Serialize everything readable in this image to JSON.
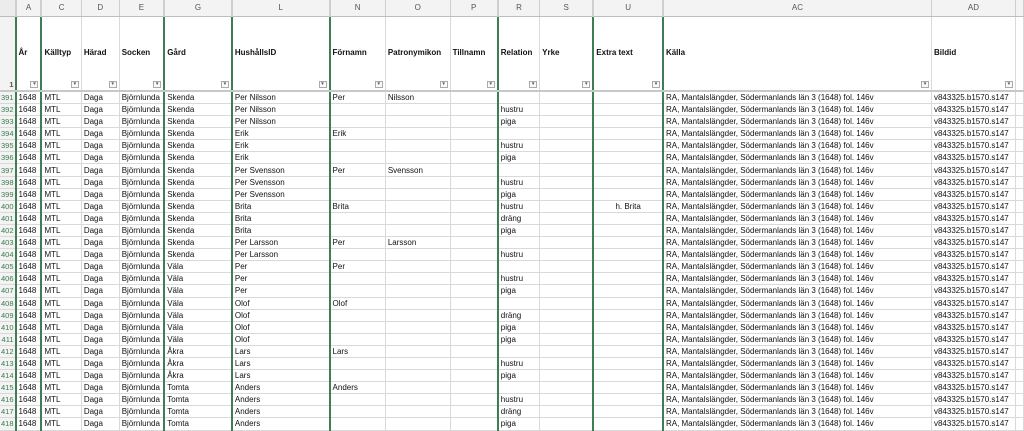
{
  "columns": [
    {
      "letter": "A",
      "field": "År"
    },
    {
      "letter": "C",
      "field": "Källtyp"
    },
    {
      "letter": "D",
      "field": "Härad"
    },
    {
      "letter": "E",
      "field": "Socken"
    },
    {
      "letter": "G",
      "field": "Gård"
    },
    {
      "letter": "L",
      "field": "HushållsID"
    },
    {
      "letter": "N",
      "field": "Förnamn"
    },
    {
      "letter": "O",
      "field": "Patronymikon"
    },
    {
      "letter": "P",
      "field": "Tillnamn"
    },
    {
      "letter": "R",
      "field": "Relation"
    },
    {
      "letter": "S",
      "field": "Yrke"
    },
    {
      "letter": "U",
      "field": "Extra text"
    },
    {
      "letter": "AC",
      "field": "Källa"
    },
    {
      "letter": "AD",
      "field": "Bildid"
    },
    {
      "letter": "",
      "field": ""
    }
  ],
  "header_row_number": "1",
  "filter_icon": "dropdown-filter-icon",
  "hidden_column_marker_color": "#3f7d55",
  "rows": [
    [
      "391",
      "1648",
      "MTL",
      "Daga",
      "Björnlunda",
      "Skenda",
      "Per Nilsson",
      "Per",
      "Nilsson",
      "",
      "",
      "",
      "",
      "RA, Mantalslängder, Södermanlands län 3 (1648) fol. 146v",
      "v843325.b1570.s147"
    ],
    [
      "392",
      "1648",
      "MTL",
      "Daga",
      "Björnlunda",
      "Skenda",
      "Per Nilsson",
      "",
      "",
      "",
      "hustru",
      "",
      "",
      "RA, Mantalslängder, Södermanlands län 3 (1648) fol. 146v",
      "v843325.b1570.s147"
    ],
    [
      "393",
      "1648",
      "MTL",
      "Daga",
      "Björnlunda",
      "Skenda",
      "Per Nilsson",
      "",
      "",
      "",
      "piga",
      "",
      "",
      "RA, Mantalslängder, Södermanlands län 3 (1648) fol. 146v",
      "v843325.b1570.s147"
    ],
    [
      "394",
      "1648",
      "MTL",
      "Daga",
      "Björnlunda",
      "Skenda",
      "Erik",
      "Erik",
      "",
      "",
      "",
      "",
      "",
      "RA, Mantalslängder, Södermanlands län 3 (1648) fol. 146v",
      "v843325.b1570.s147"
    ],
    [
      "395",
      "1648",
      "MTL",
      "Daga",
      "Björnlunda",
      "Skenda",
      "Erik",
      "",
      "",
      "",
      "hustru",
      "",
      "",
      "RA, Mantalslängder, Södermanlands län 3 (1648) fol. 146v",
      "v843325.b1570.s147"
    ],
    [
      "396",
      "1648",
      "MTL",
      "Daga",
      "Björnlunda",
      "Skenda",
      "Erik",
      "",
      "",
      "",
      "piga",
      "",
      "",
      "RA, Mantalslängder, Södermanlands län 3 (1648) fol. 146v",
      "v843325.b1570.s147"
    ],
    [
      "397",
      "1648",
      "MTL",
      "Daga",
      "Björnlunda",
      "Skenda",
      "Per Svensson",
      "Per",
      "Svensson",
      "",
      "",
      "",
      "",
      "RA, Mantalslängder, Södermanlands län 3 (1648) fol. 146v",
      "v843325.b1570.s147"
    ],
    [
      "398",
      "1648",
      "MTL",
      "Daga",
      "Björnlunda",
      "Skenda",
      "Per Svensson",
      "",
      "",
      "",
      "hustru",
      "",
      "",
      "RA, Mantalslängder, Södermanlands län 3 (1648) fol. 146v",
      "v843325.b1570.s147"
    ],
    [
      "399",
      "1648",
      "MTL",
      "Daga",
      "Björnlunda",
      "Skenda",
      "Per Svensson",
      "",
      "",
      "",
      "piga",
      "",
      "",
      "RA, Mantalslängder, Södermanlands län 3 (1648) fol. 146v",
      "v843325.b1570.s147"
    ],
    [
      "400",
      "1648",
      "MTL",
      "Daga",
      "Björnlunda",
      "Skenda",
      "Brita",
      "Brita",
      "",
      "",
      "hustru",
      "",
      "h. Brita",
      "RA, Mantalslängder, Södermanlands län 3 (1648) fol. 146v",
      "v843325.b1570.s147"
    ],
    [
      "401",
      "1648",
      "MTL",
      "Daga",
      "Björnlunda",
      "Skenda",
      "Brita",
      "",
      "",
      "",
      "dräng",
      "",
      "",
      "RA, Mantalslängder, Södermanlands län 3 (1648) fol. 146v",
      "v843325.b1570.s147"
    ],
    [
      "402",
      "1648",
      "MTL",
      "Daga",
      "Björnlunda",
      "Skenda",
      "Brita",
      "",
      "",
      "",
      "piga",
      "",
      "",
      "RA, Mantalslängder, Södermanlands län 3 (1648) fol. 146v",
      "v843325.b1570.s147"
    ],
    [
      "403",
      "1648",
      "MTL",
      "Daga",
      "Björnlunda",
      "Skenda",
      "Per Larsson",
      "Per",
      "Larsson",
      "",
      "",
      "",
      "",
      "RA, Mantalslängder, Södermanlands län 3 (1648) fol. 146v",
      "v843325.b1570.s147"
    ],
    [
      "404",
      "1648",
      "MTL",
      "Daga",
      "Björnlunda",
      "Skenda",
      "Per Larsson",
      "",
      "",
      "",
      "hustru",
      "",
      "",
      "RA, Mantalslängder, Södermanlands län 3 (1648) fol. 146v",
      "v843325.b1570.s147"
    ],
    [
      "405",
      "1648",
      "MTL",
      "Daga",
      "Björnlunda",
      "Väla",
      "Per",
      "Per",
      "",
      "",
      "",
      "",
      "",
      "RA, Mantalslängder, Södermanlands län 3 (1648) fol. 146v",
      "v843325.b1570.s147"
    ],
    [
      "406",
      "1648",
      "MTL",
      "Daga",
      "Björnlunda",
      "Väla",
      "Per",
      "",
      "",
      "",
      "hustru",
      "",
      "",
      "RA, Mantalslängder, Södermanlands län 3 (1648) fol. 146v",
      "v843325.b1570.s147"
    ],
    [
      "407",
      "1648",
      "MTL",
      "Daga",
      "Björnlunda",
      "Väla",
      "Per",
      "",
      "",
      "",
      "piga",
      "",
      "",
      "RA, Mantalslängder, Södermanlands län 3 (1648) fol. 146v",
      "v843325.b1570.s147"
    ],
    [
      "408",
      "1648",
      "MTL",
      "Daga",
      "Björnlunda",
      "Väla",
      "Olof",
      "Olof",
      "",
      "",
      "",
      "",
      "",
      "RA, Mantalslängder, Södermanlands län 3 (1648) fol. 146v",
      "v843325.b1570.s147"
    ],
    [
      "409",
      "1648",
      "MTL",
      "Daga",
      "Björnlunda",
      "Väla",
      "Olof",
      "",
      "",
      "",
      "dräng",
      "",
      "",
      "RA, Mantalslängder, Södermanlands län 3 (1648) fol. 146v",
      "v843325.b1570.s147"
    ],
    [
      "410",
      "1648",
      "MTL",
      "Daga",
      "Björnlunda",
      "Väla",
      "Olof",
      "",
      "",
      "",
      "piga",
      "",
      "",
      "RA, Mantalslängder, Södermanlands län 3 (1648) fol. 146v",
      "v843325.b1570.s147"
    ],
    [
      "411",
      "1648",
      "MTL",
      "Daga",
      "Björnlunda",
      "Väla",
      "Olof",
      "",
      "",
      "",
      "piga",
      "",
      "",
      "RA, Mantalslängder, Södermanlands län 3 (1648) fol. 146v",
      "v843325.b1570.s147"
    ],
    [
      "412",
      "1648",
      "MTL",
      "Daga",
      "Björnlunda",
      "Åkra",
      "Lars",
      "Lars",
      "",
      "",
      "",
      "",
      "",
      "RA, Mantalslängder, Södermanlands län 3 (1648) fol. 146v",
      "v843325.b1570.s147"
    ],
    [
      "413",
      "1648",
      "MTL",
      "Daga",
      "Björnlunda",
      "Åkra",
      "Lars",
      "",
      "",
      "",
      "hustru",
      "",
      "",
      "RA, Mantalslängder, Södermanlands län 3 (1648) fol. 146v",
      "v843325.b1570.s147"
    ],
    [
      "414",
      "1648",
      "MTL",
      "Daga",
      "Björnlunda",
      "Åkra",
      "Lars",
      "",
      "",
      "",
      "piga",
      "",
      "",
      "RA, Mantalslängder, Södermanlands län 3 (1648) fol. 146v",
      "v843325.b1570.s147"
    ],
    [
      "415",
      "1648",
      "MTL",
      "Daga",
      "Björnlunda",
      "Tomta",
      "Anders",
      "Anders",
      "",
      "",
      "",
      "",
      "",
      "RA, Mantalslängder, Södermanlands län 3 (1648) fol. 146v",
      "v843325.b1570.s147"
    ],
    [
      "416",
      "1648",
      "MTL",
      "Daga",
      "Björnlunda",
      "Tomta",
      "Anders",
      "",
      "",
      "",
      "hustru",
      "",
      "",
      "RA, Mantalslängder, Södermanlands län 3 (1648) fol. 146v",
      "v843325.b1570.s147"
    ],
    [
      "417",
      "1648",
      "MTL",
      "Daga",
      "Björnlunda",
      "Tomta",
      "Anders",
      "",
      "",
      "",
      "dräng",
      "",
      "",
      "RA, Mantalslängder, Södermanlands län 3 (1648) fol. 146v",
      "v843325.b1570.s147"
    ],
    [
      "418",
      "1648",
      "MTL",
      "Daga",
      "Björnlunda",
      "Tomta",
      "Anders",
      "",
      "",
      "",
      "piga",
      "",
      "",
      "RA, Mantalslängder, Södermanlands län 3 (1648) fol. 146v",
      "v843325.b1570.s147"
    ]
  ]
}
